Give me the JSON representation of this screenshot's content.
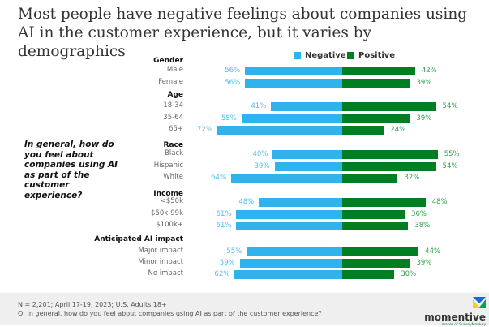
{
  "title": "Most people have negative feelings about companies using AI in the customer experience, but it varies by demographics",
  "question": "In general, how do you feel about companies using AI as part of the customer experience?",
  "footer": {
    "note": "N = 2,201; April 17-19, 2023; U.S. Adults 18+",
    "q": "Q: In general, how do you feel about companies using AI as part of the customer experience?",
    "logo": "momentive",
    "logo_sub": "maker of SurveyMonkey"
  },
  "chart_data": {
    "type": "bar",
    "orientation": "horizontal-diverging",
    "legend": [
      "Negative",
      "Positive"
    ],
    "legend_position": "top",
    "colors": {
      "Negative": "#2fb3ee",
      "Positive": "#007f22",
      "neg_label": "#4cc0f0",
      "pos_label": "#2fa34a"
    },
    "groups": [
      {
        "name": "Gender",
        "rows": [
          {
            "label": "Male",
            "negative": 56,
            "positive": 42
          },
          {
            "label": "Female",
            "negative": 56,
            "positive": 39
          }
        ]
      },
      {
        "name": "Age",
        "rows": [
          {
            "label": "18-34",
            "negative": 41,
            "positive": 54
          },
          {
            "label": "35-64",
            "negative": 58,
            "positive": 39
          },
          {
            "label": "65+",
            "negative": 72,
            "positive": 24
          }
        ]
      },
      {
        "name": "Race",
        "rows": [
          {
            "label": "Black",
            "negative": 40,
            "positive": 55
          },
          {
            "label": "Hispanic",
            "negative": 39,
            "positive": 54
          },
          {
            "label": "White",
            "negative": 64,
            "positive": 32
          }
        ]
      },
      {
        "name": "Income",
        "rows": [
          {
            "label": "<$50k",
            "negative": 48,
            "positive": 48
          },
          {
            "label": "$50k-99k",
            "negative": 61,
            "positive": 36
          },
          {
            "label": "$100k+",
            "negative": 61,
            "positive": 38
          }
        ]
      },
      {
        "name": "Anticipated AI impact",
        "rows": [
          {
            "label": "Major impact",
            "negative": 55,
            "positive": 44
          },
          {
            "label": "Minor impact",
            "negative": 59,
            "positive": 39
          },
          {
            "label": "No impact",
            "negative": 62,
            "positive": 30
          }
        ]
      }
    ]
  }
}
